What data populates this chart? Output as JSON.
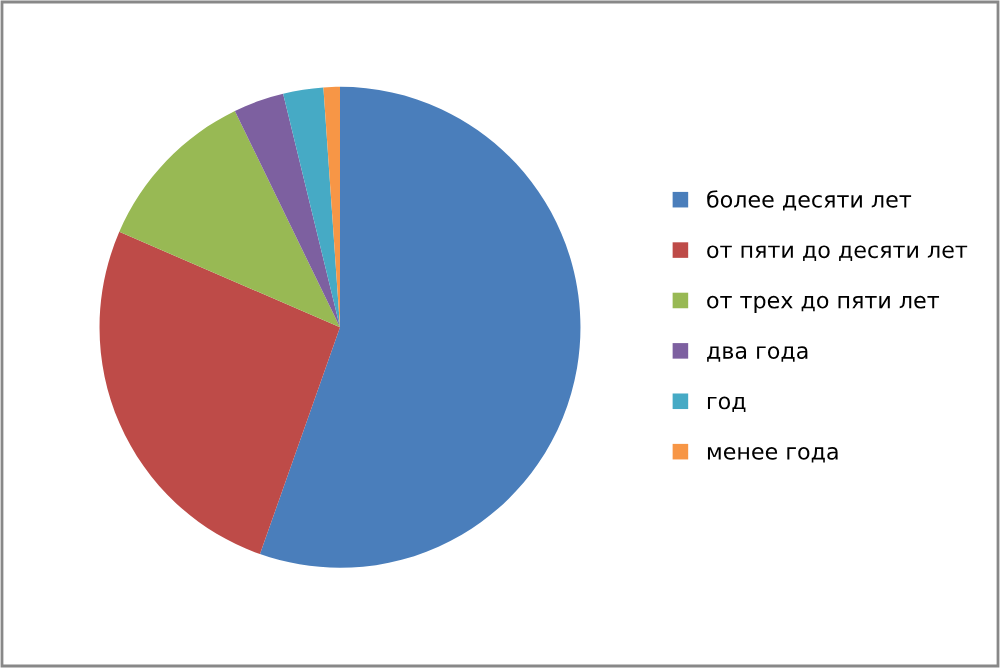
{
  "chart_data": {
    "type": "pie",
    "categories": [
      "более десяти лет",
      "от пяти до десяти лет",
      "от трех до пяти лет",
      "два года",
      "год",
      "менее года"
    ],
    "values": [
      55.4,
      26.1,
      11.3,
      3.4,
      2.7,
      1.1
    ],
    "colors": [
      "#4a7ebb",
      "#be4b48",
      "#98b954",
      "#7d60a0",
      "#46aac5",
      "#f79646"
    ],
    "legend": "right"
  }
}
